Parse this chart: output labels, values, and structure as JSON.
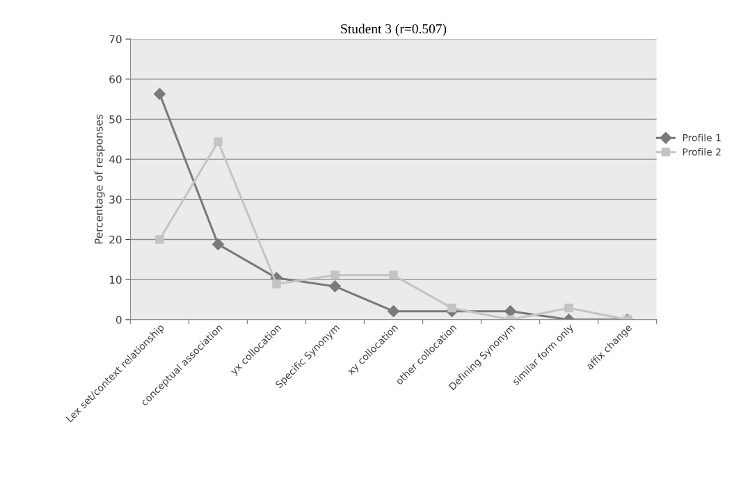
{
  "chart_data": {
    "type": "line",
    "title": "Student 3 (r=0.507)",
    "ylabel": "Percentage of responses",
    "categories": [
      "Lex set/context relationship",
      "conceptual association",
      "yx collocation",
      "Specific Synonym",
      "xy collocation",
      "other collocation",
      "Defining Synonym",
      "similar form only",
      "affix change"
    ],
    "series": [
      {
        "name": "Profile 1",
        "color": "#7a7a7a",
        "marker": "diamond",
        "values": [
          56.3,
          18.8,
          10.4,
          8.3,
          2.1,
          2.1,
          2.1,
          0,
          0
        ]
      },
      {
        "name": "Profile 2",
        "color": "#c4c4c4",
        "marker": "square",
        "values": [
          20,
          44.4,
          8.9,
          11.1,
          11.1,
          2.9,
          0,
          2.9,
          0
        ]
      }
    ],
    "ylim": [
      0,
      70
    ],
    "yticks": [
      0,
      10,
      20,
      30,
      40,
      50,
      60,
      70
    ],
    "grid": "y",
    "legend": "right"
  }
}
